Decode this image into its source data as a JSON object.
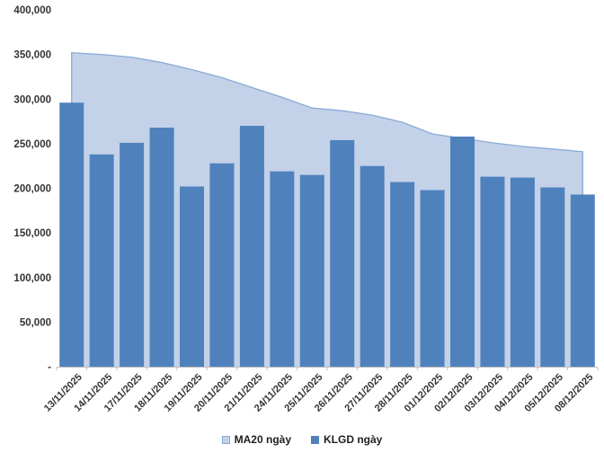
{
  "chart_data": {
    "type": "bar",
    "title": "",
    "categories": [
      "13/11/2025",
      "14/11/2025",
      "17/11/2025",
      "18/11/2025",
      "19/11/2025",
      "20/11/2025",
      "21/11/2025",
      "24/11/2025",
      "25/11/2025",
      "26/11/2025",
      "27/11/2025",
      "28/11/2025",
      "01/12/2025",
      "02/12/2025",
      "03/12/2025",
      "04/12/2025",
      "05/12/2025",
      "08/12/2025"
    ],
    "series": [
      {
        "name": "MA20 ngày",
        "type": "area",
        "values": [
          352000,
          350000,
          347000,
          341000,
          333000,
          324000,
          313000,
          302000,
          290000,
          287000,
          282000,
          274000,
          261000,
          256000,
          251000,
          247000,
          244000,
          241000
        ]
      },
      {
        "name": "KLGD ngày",
        "type": "bar",
        "values": [
          296000,
          238000,
          251000,
          268000,
          202000,
          228000,
          270000,
          219000,
          215000,
          254000,
          225000,
          207000,
          198000,
          258000,
          213000,
          212000,
          201000,
          193000
        ]
      }
    ],
    "ylim": [
      0,
      400000
    ],
    "ytick_step": 50000,
    "yticks": [
      {
        "label": "400,000",
        "value": 400000
      },
      {
        "label": "350,000",
        "value": 350000
      },
      {
        "label": "300,000",
        "value": 300000
      },
      {
        "label": "250,000",
        "value": 250000
      },
      {
        "label": "200,000",
        "value": 200000
      },
      {
        "label": "150,000",
        "value": 150000
      },
      {
        "label": "100,000",
        "value": 100000
      },
      {
        "label": "50,000",
        "value": 50000
      },
      {
        "label": "-",
        "value": 0
      }
    ],
    "grid": false,
    "legend_position": "bottom",
    "colors": {
      "bar": "#4F81BD",
      "area_fill": "#C3D2E8",
      "area_line": "#88AAD6",
      "axis": "#BFBFBF",
      "label": "#333333",
      "legend_text": "#1f1f1f"
    }
  },
  "legend": {
    "items": [
      {
        "label": "MA20 ngày",
        "swatch": "area"
      },
      {
        "label": "KLGD ngày",
        "swatch": "bar"
      }
    ]
  }
}
